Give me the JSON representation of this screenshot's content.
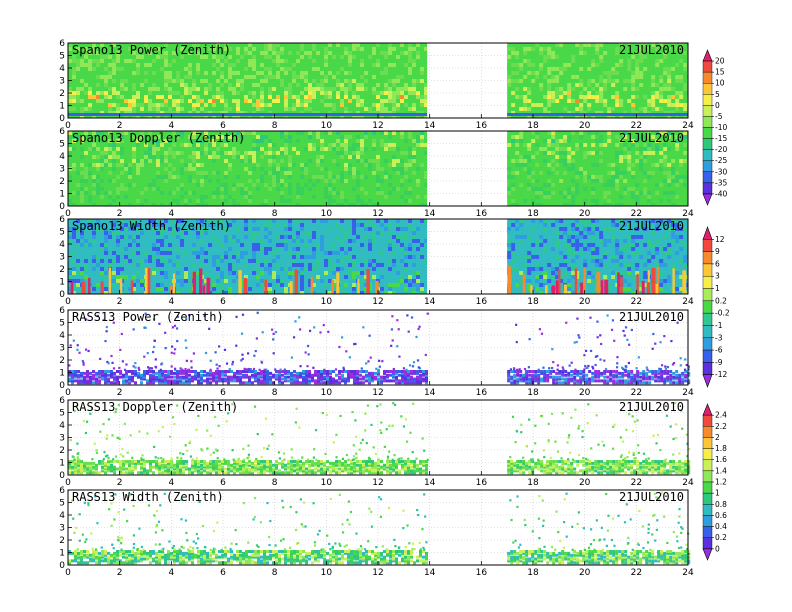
{
  "chart_data": [
    {
      "type": "heatmap",
      "title": "Spano13 Power (Zenith)",
      "date": "21JUL2010",
      "x_ticks": [
        "0",
        "2",
        "4",
        "6",
        "8",
        "10",
        "12",
        "14",
        "16",
        "18",
        "20",
        "22",
        "24"
      ],
      "y_ticks": [
        "0",
        "1",
        "2",
        "3",
        "4",
        "5",
        "6"
      ],
      "xlim": [
        0,
        24
      ],
      "ylim": [
        0,
        6
      ],
      "data_gaps": [
        [
          13.9,
          17.0
        ]
      ],
      "style": "dense",
      "colorbar": "power"
    },
    {
      "type": "heatmap",
      "title": "Spano13 Doppler (Zenith)",
      "date": "21JUL2010",
      "x_ticks": [
        "0",
        "2",
        "4",
        "6",
        "8",
        "10",
        "12",
        "14",
        "16",
        "18",
        "20",
        "22",
        "24"
      ],
      "y_ticks": [
        "0",
        "1",
        "2",
        "3",
        "4",
        "5",
        "6"
      ],
      "xlim": [
        0,
        24
      ],
      "ylim": [
        0,
        6
      ],
      "data_gaps": [
        [
          13.9,
          17.0
        ]
      ],
      "style": "dense",
      "colorbar": "power"
    },
    {
      "type": "heatmap",
      "title": "Spano13 Width (Zenith)",
      "date": "21JUL2010",
      "x_ticks": [
        "0",
        "2",
        "4",
        "6",
        "8",
        "10",
        "12",
        "14",
        "16",
        "18",
        "20",
        "22",
        "24"
      ],
      "y_ticks": [
        "0",
        "1",
        "2",
        "3",
        "4",
        "5",
        "6"
      ],
      "xlim": [
        0,
        24
      ],
      "ylim": [
        0,
        6
      ],
      "data_gaps": [
        [
          13.9,
          17.0
        ]
      ],
      "style": "dense",
      "colorbar": "width"
    },
    {
      "type": "heatmap",
      "title": "RASS13 Power (Zenith)",
      "date": "21JUL2010",
      "x_ticks": [
        "0",
        "2",
        "4",
        "6",
        "8",
        "10",
        "12",
        "14",
        "16",
        "18",
        "20",
        "22",
        "24"
      ],
      "y_ticks": [
        "0",
        "1",
        "2",
        "3",
        "4",
        "5",
        "6"
      ],
      "xlim": [
        0,
        24
      ],
      "ylim": [
        0,
        6
      ],
      "data_gaps": [
        [
          13.9,
          17.0
        ]
      ],
      "style": "sparse",
      "colorbar": "width"
    },
    {
      "type": "heatmap",
      "title": "RASS13 Doppler (Zenith)",
      "date": "21JUL2010",
      "x_ticks": [
        "0",
        "2",
        "4",
        "6",
        "8",
        "10",
        "12",
        "14",
        "16",
        "18",
        "20",
        "22",
        "24"
      ],
      "y_ticks": [
        "0",
        "1",
        "2",
        "3",
        "4",
        "5",
        "6"
      ],
      "xlim": [
        0,
        24
      ],
      "ylim": [
        0,
        6
      ],
      "data_gaps": [
        [
          13.9,
          17.0
        ]
      ],
      "style": "sparse",
      "colorbar": "rass"
    },
    {
      "type": "heatmap",
      "title": "RASS13 Width (Zenith)",
      "date": "21JUL2010",
      "x_ticks": [
        "0",
        "2",
        "4",
        "6",
        "8",
        "10",
        "12",
        "14",
        "16",
        "18",
        "20",
        "22",
        "24"
      ],
      "y_ticks": [
        "0",
        "1",
        "2",
        "3",
        "4",
        "5",
        "6"
      ],
      "xlim": [
        0,
        24
      ],
      "ylim": [
        0,
        6
      ],
      "data_gaps": [
        [
          13.9,
          17.0
        ]
      ],
      "style": "sparse",
      "colorbar": "rass"
    }
  ],
  "colorbars": [
    {
      "id": "power",
      "labels": [
        "20",
        "15",
        "10",
        "5",
        "0",
        "-5",
        "-10",
        "-15",
        "-20",
        "-25",
        "-30",
        "-35",
        "-40"
      ],
      "colors": [
        "#e0206a",
        "#f04a3c",
        "#f88a2e",
        "#fdc636",
        "#f6ef4a",
        "#c9f058",
        "#8fe858",
        "#48d848",
        "#2ec87c",
        "#30bcc0",
        "#2e9ee0",
        "#3860e8",
        "#5a30e0",
        "#9b2ee0"
      ]
    },
    {
      "id": "width",
      "labels": [
        "12",
        "9",
        "6",
        "3",
        "1",
        "0.2",
        "-0.2",
        "-1",
        "-3",
        "-6",
        "-9",
        "-12"
      ],
      "colors": [
        "#e0206a",
        "#f04a3c",
        "#f88a2e",
        "#fdc636",
        "#f6ef4a",
        "#a8ec58",
        "#48d848",
        "#2ec890",
        "#30bcc0",
        "#2e9ee0",
        "#3860e8",
        "#5a30e0",
        "#9b2ee0"
      ]
    },
    {
      "id": "rass",
      "labels": [
        "2.4",
        "2.2",
        "2",
        "1.8",
        "1.6",
        "1.4",
        "1.2",
        "1",
        "0.8",
        "0.6",
        "0.4",
        "0.2",
        "0"
      ],
      "colors": [
        "#e0206a",
        "#f04a3c",
        "#f88a2e",
        "#fdc636",
        "#f6ef4a",
        "#c9f058",
        "#8fe858",
        "#48d848",
        "#2ec87c",
        "#30bcc0",
        "#2e9ee0",
        "#3860e8",
        "#5a30e0",
        "#9b2ee0"
      ]
    }
  ]
}
